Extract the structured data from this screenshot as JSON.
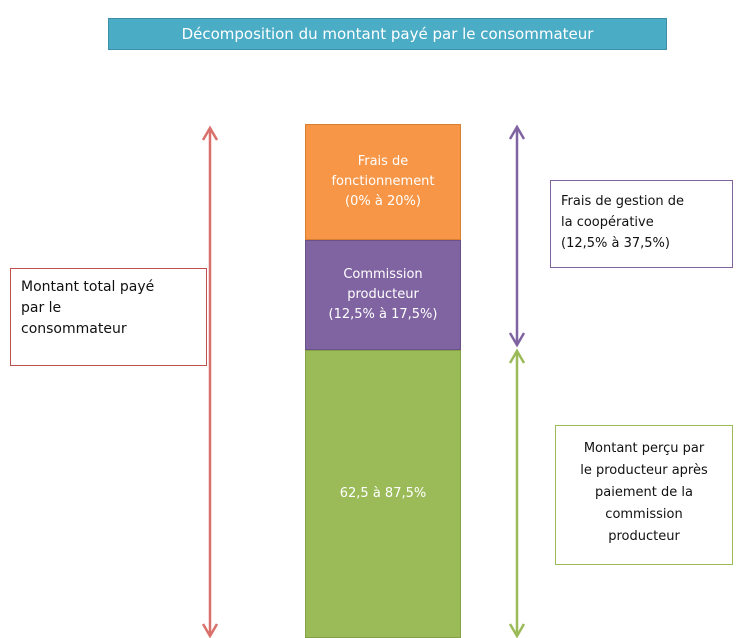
{
  "title": "Décomposition du montant payé par le consommateur",
  "segments": [
    {
      "lines": [
        "Frais de",
        "fonctionnement",
        "(0% à 20%)"
      ]
    },
    {
      "lines": [
        "Commission",
        "producteur",
        "(12,5% à 17,5%)"
      ]
    },
    {
      "lines": [
        "62,5 à 87,5%"
      ]
    }
  ],
  "annotations": {
    "total": {
      "lines": [
        "Montant total payé",
        "par le",
        "consommateur"
      ]
    },
    "gestion": {
      "lines": [
        "Frais de gestion de",
        "la coopérative",
        "(12,5% à 37,5%)"
      ]
    },
    "percu": {
      "lines": [
        "Montant perçu par",
        "le producteur après",
        "paiement de la",
        "commission",
        "producteur"
      ]
    }
  }
}
